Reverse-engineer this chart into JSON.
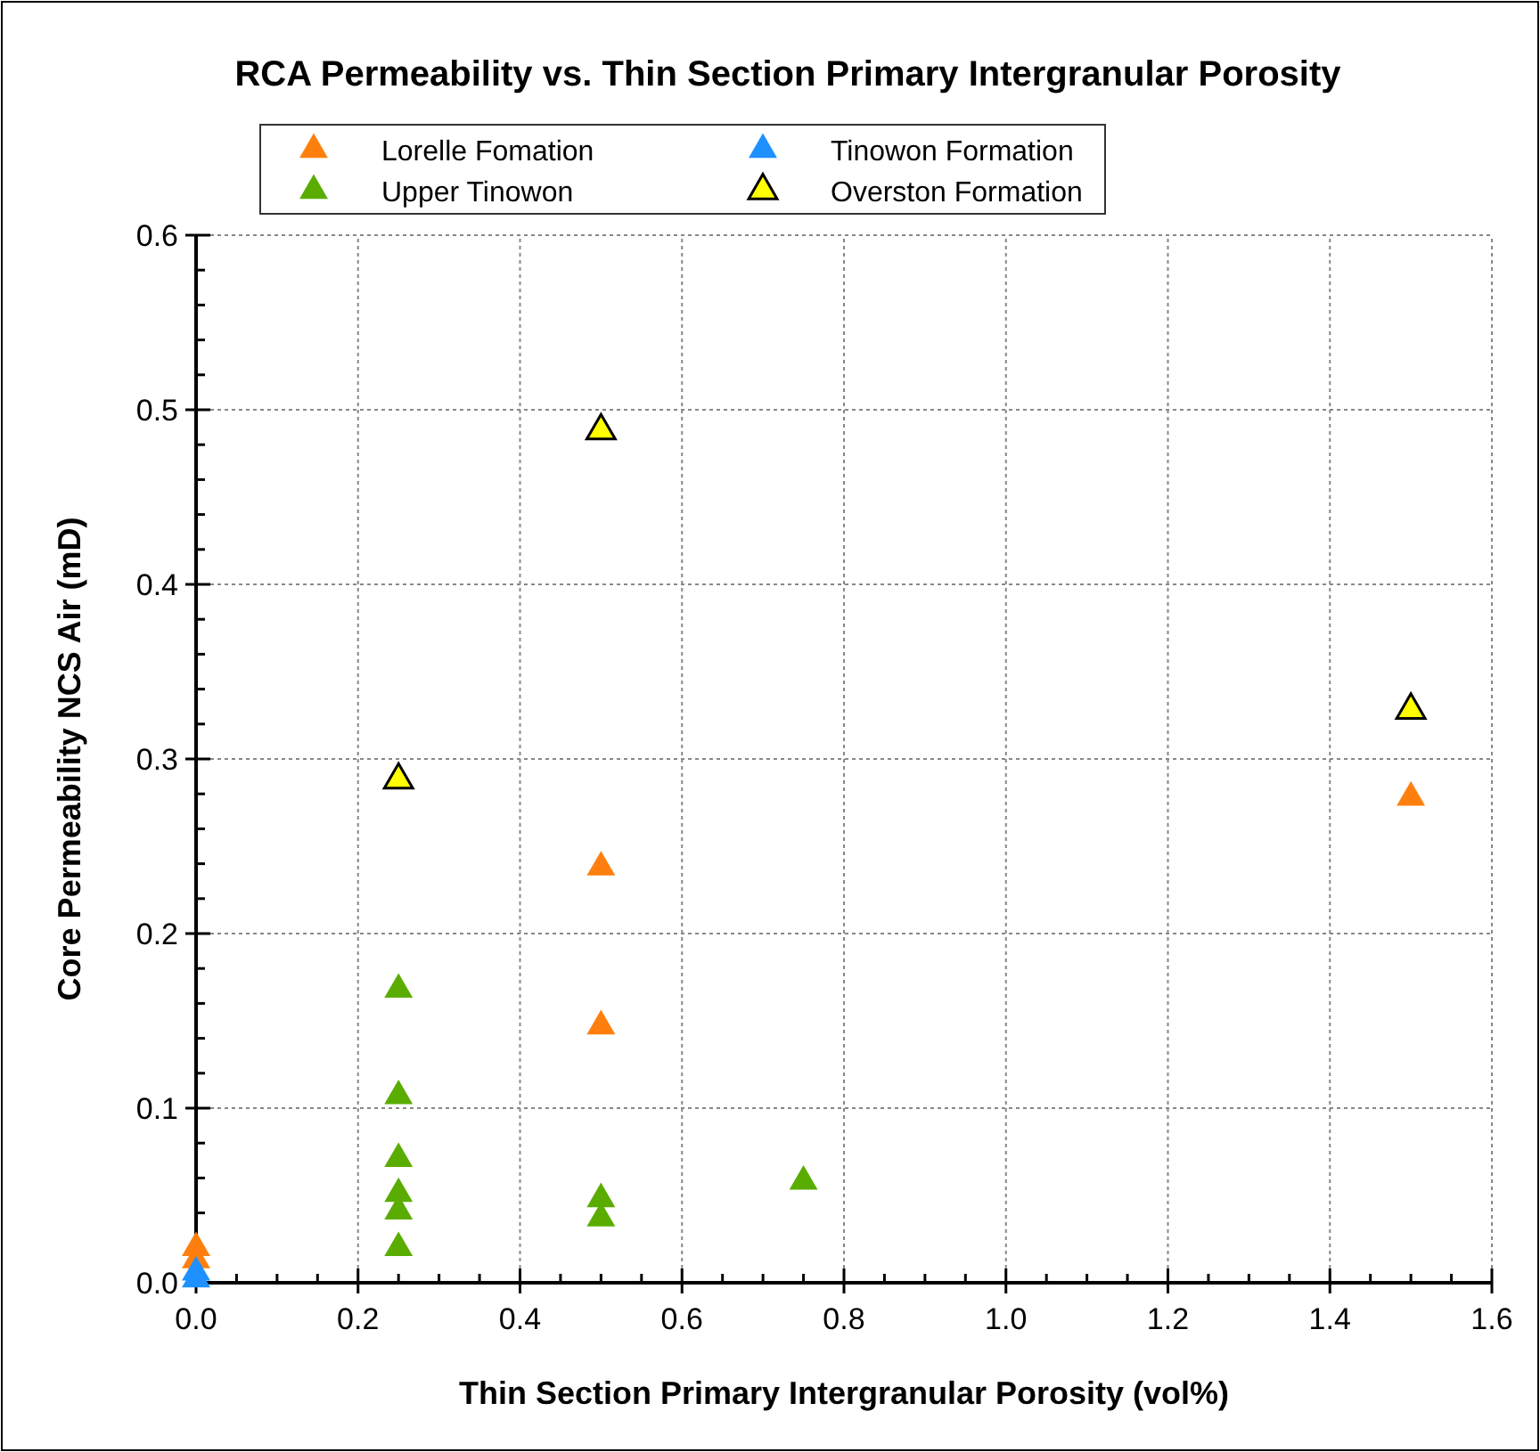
{
  "chart_data": {
    "type": "scatter",
    "title": "RCA Permeability vs. Thin Section Primary Intergranular Porosity",
    "xlabel": "Thin Section Primary Intergranular Porosity (vol%)",
    "ylabel": "Core Permeability NCS Air (mD)",
    "xlim": [
      0,
      1.6
    ],
    "ylim": [
      0,
      0.6
    ],
    "xticks": [
      {
        "value": 0,
        "label": "0.0"
      },
      0.2,
      0.4,
      0.6,
      0.8,
      {
        "value": 1,
        "label": "1.0"
      },
      1.2,
      1.4,
      1.6
    ],
    "yticks": [
      {
        "value": 0,
        "label": "0.0"
      },
      0.1,
      0.2,
      0.3,
      0.4,
      0.5,
      0.6
    ],
    "grid": true,
    "legend": "top",
    "marker": "triangle",
    "series": [
      {
        "name": "Lorelle Fomation",
        "color": "#ff7f0e",
        "x": [
          0,
          0,
          0.5,
          0.5,
          1.5
        ],
        "values": [
          0.022,
          0.015,
          0.24,
          0.149,
          0.28
        ]
      },
      {
        "name": "Tinowon Formation",
        "color": "#1e90ff",
        "x": [
          0,
          0
        ],
        "values": [
          0.008,
          0.004
        ]
      },
      {
        "name": "Upper Tinowon",
        "color": "#5aad00",
        "x": [
          0.25,
          0.25,
          0.25,
          0.25,
          0.25,
          0.25,
          0.5,
          0.5,
          0.75
        ],
        "values": [
          0.17,
          0.109,
          0.073,
          0.053,
          0.043,
          0.022,
          0.05,
          0.039,
          0.06
        ]
      },
      {
        "name": "Overston Formation",
        "color": "#ffff00",
        "x": [
          0.25,
          0.5,
          1.5
        ],
        "values": [
          0.29,
          0.49,
          0.33
        ]
      }
    ]
  }
}
